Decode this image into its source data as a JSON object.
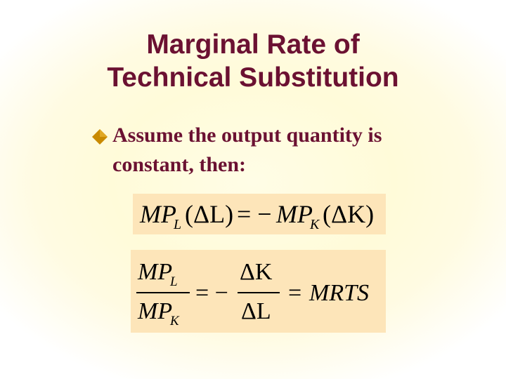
{
  "slide": {
    "title_line1": "Marginal Rate of",
    "title_line2": "Technical Substitution",
    "bullet_icon": "diamond-bullet-icon",
    "bullet_line1": "Assume the output quantity is",
    "bullet_line2": "constant, then:"
  },
  "equation1": {
    "mp": "MP",
    "sub_l": "L",
    "sub_k": "K",
    "open_delta_l": "(ΔL)",
    "eq_neg": "= −",
    "open_delta_k": "(ΔK)"
  },
  "equation2": {
    "num_mp": "MP",
    "num_sub": "L",
    "den_mp": "MP",
    "den_sub": "K",
    "eq_neg": "= −",
    "delta_k": "ΔK",
    "delta_l": "ΔL",
    "eq": "=",
    "mrts": "MRTS"
  },
  "colors": {
    "title": "#6b1132",
    "bullet": "#c98a00",
    "equation_bg": "#fde5b9"
  }
}
